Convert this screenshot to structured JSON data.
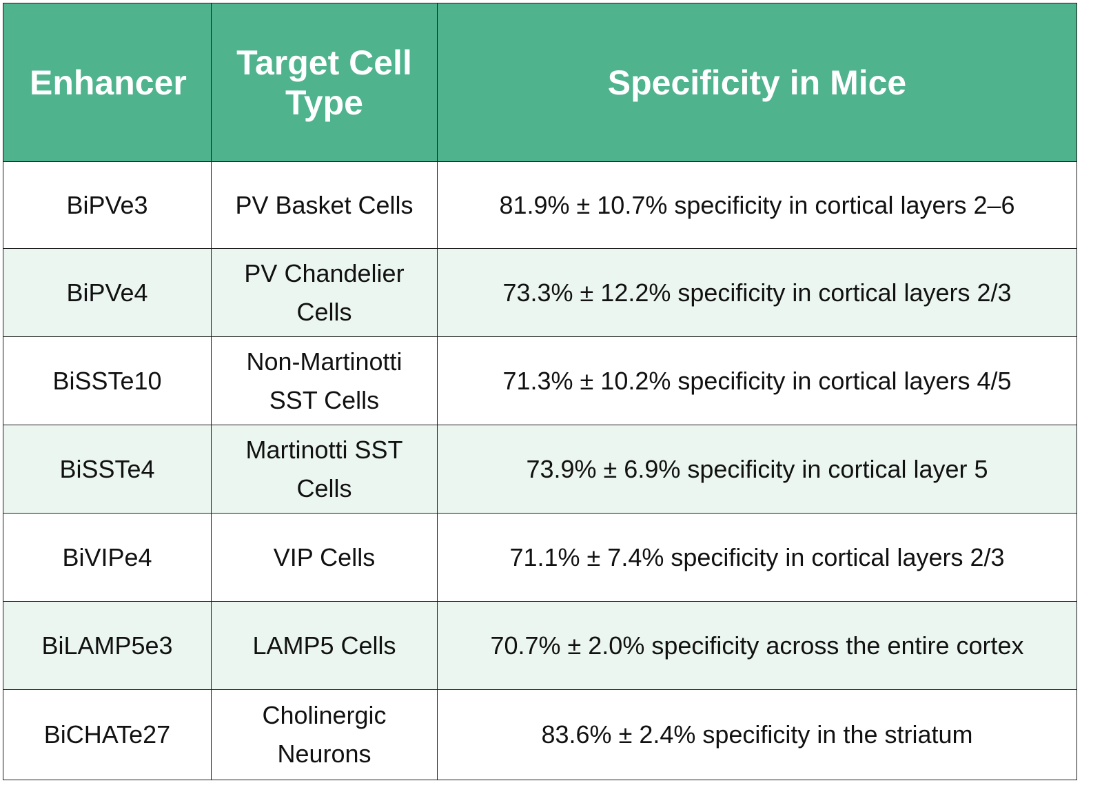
{
  "table": {
    "headers": [
      "Enhancer",
      "Target Cell Type",
      "Specificity in Mice"
    ],
    "rows": [
      {
        "enhancer": "BiPVe3",
        "target": "PV Basket Cells",
        "specificity": "81.9% ± 10.7% specificity in cortical layers 2–6"
      },
      {
        "enhancer": "BiPVe4",
        "target": "PV Chandelier Cells",
        "specificity": "73.3% ± 12.2% specificity in cortical layers 2/3"
      },
      {
        "enhancer": "BiSSTe10",
        "target": "Non-Martinotti SST Cells",
        "specificity": "71.3% ± 10.2% specificity in cortical layers 4/5"
      },
      {
        "enhancer": "BiSSTe4",
        "target": "Martinotti SST Cells",
        "specificity": "73.9% ± 6.9% specificity in cortical layer 5"
      },
      {
        "enhancer": "BiVIPe4",
        "target": "VIP Cells",
        "specificity": "71.1% ± 7.4% specificity in cortical layers 2/3"
      },
      {
        "enhancer": "BiLAMP5e3",
        "target": "LAMP5 Cells",
        "specificity": "70.7% ± 2.0% specificity across the entire cortex"
      },
      {
        "enhancer": "BiCHATe27",
        "target": "Cholinergic Neurons",
        "specificity": "83.6% ± 2.4% specificity in the striatum"
      }
    ]
  },
  "colors": {
    "header_bg": "#4fb38e",
    "header_text": "#ffffff",
    "stripe_bg": "#eaf6ef"
  }
}
